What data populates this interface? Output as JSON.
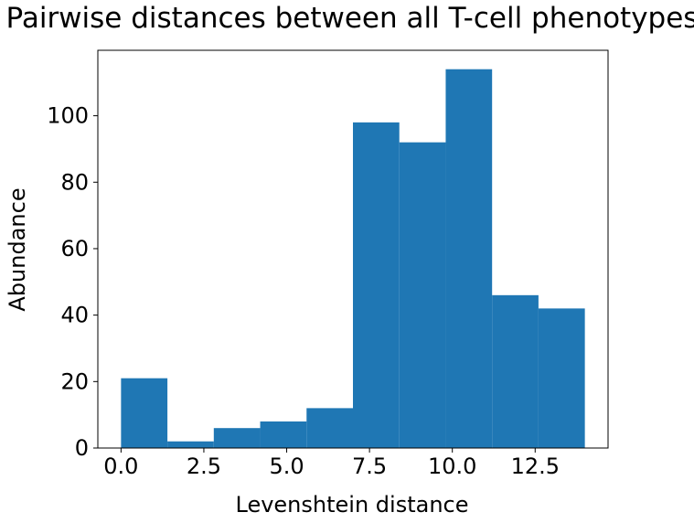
{
  "chart_data": {
    "type": "bar",
    "title": "Pairwise distances between all T-cell phenotypes",
    "xlabel": "Levenshtein distance",
    "ylabel": "Abundance",
    "bin_edges": [
      0.0,
      1.4,
      2.8,
      4.2,
      5.6,
      7.0,
      8.4,
      9.8,
      11.2,
      12.6,
      14.0
    ],
    "values": [
      21,
      2,
      6,
      8,
      12,
      98,
      92,
      114,
      46,
      42
    ],
    "xlim": [
      -0.7,
      14.7
    ],
    "ylim": [
      0,
      119.7
    ],
    "xticks": [
      0.0,
      2.5,
      5.0,
      7.5,
      10.0,
      12.5
    ],
    "xtick_labels": [
      "0.0",
      "2.5",
      "5.0",
      "7.5",
      "10.0",
      "12.5"
    ],
    "yticks": [
      0,
      20,
      40,
      60,
      80,
      100
    ],
    "ytick_labels": [
      "0",
      "20",
      "40",
      "60",
      "80",
      "100"
    ],
    "bar_color": "#1f77b4",
    "grid": false,
    "legend": "none"
  }
}
